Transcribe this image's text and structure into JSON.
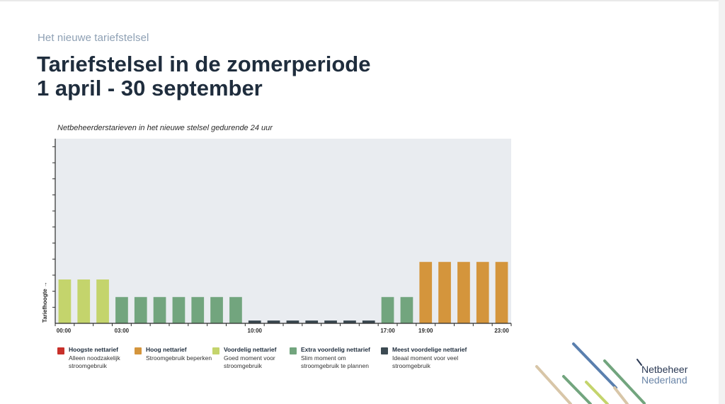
{
  "slide": {
    "kicker": "Het nieuwe tariefstelsel",
    "title_line1": "Tariefstelsel in de zomerperiode",
    "title_line2": "1 april - 30 september"
  },
  "chart_caption": "Netbeheerderstarieven in het nieuwe stelsel gedurende 24 uur",
  "chart_data": {
    "type": "bar",
    "title": "Netbeheerderstarieven in het nieuwe stelsel gedurende 24 uur",
    "ylabel": "Tariefhoogte →",
    "xlabel": "",
    "ylim": [
      0,
      10
    ],
    "x_tick_labels": [
      {
        "hour": 0,
        "label": "00:00"
      },
      {
        "hour": 3,
        "label": "03:00"
      },
      {
        "hour": 10,
        "label": "10:00"
      },
      {
        "hour": 17,
        "label": "17:00"
      },
      {
        "hour": 19,
        "label": "19:00"
      },
      {
        "hour": 23,
        "label": "23:00"
      }
    ],
    "hours": [
      0,
      1,
      2,
      3,
      4,
      5,
      6,
      7,
      8,
      9,
      10,
      11,
      12,
      13,
      14,
      15,
      16,
      17,
      18,
      19,
      20,
      21,
      22,
      23
    ],
    "values": [
      2.5,
      2.5,
      2.5,
      1.5,
      1.5,
      1.5,
      1.5,
      1.5,
      1.5,
      1.5,
      0.1,
      0.1,
      0.1,
      0.1,
      0.1,
      0.1,
      0.1,
      1.5,
      1.5,
      3.5,
      3.5,
      3.5,
      3.5,
      3.5
    ],
    "tariff_category": [
      "voordelig",
      "voordelig",
      "voordelig",
      "extra",
      "extra",
      "extra",
      "extra",
      "extra",
      "extra",
      "extra",
      "meest",
      "meest",
      "meest",
      "meest",
      "meest",
      "meest",
      "meest",
      "extra",
      "extra",
      "hoog",
      "hoog",
      "hoog",
      "hoog",
      "hoog"
    ],
    "grid": false,
    "legend_position": "bottom"
  },
  "colors": {
    "hoogste": "#c8302a",
    "hoog": "#d4953c",
    "voordelig": "#c4d46c",
    "extra": "#72a57e",
    "meest": "#3c4a52",
    "plot_bg": "#e9ecf0",
    "axis": "#2b2b2b"
  },
  "legend": [
    {
      "key": "hoogste",
      "title": "Hoogste nettarief",
      "desc": "Alleen noodzakelijk stroomgebruik"
    },
    {
      "key": "hoog",
      "title": "Hoog nettarief",
      "desc": "Stroomgebruik beperken"
    },
    {
      "key": "voordelig",
      "title": "Voordelig nettarief",
      "desc": "Goed moment voor stroomgebruik"
    },
    {
      "key": "extra",
      "title": "Extra voordelig nettarief",
      "desc": "Slim moment om stroomgebruik te plannen"
    },
    {
      "key": "meest",
      "title": "Meest voordelige nettarief",
      "desc": "Ideaal moment voor veel stroomgebruik"
    }
  ],
  "logo": {
    "line1": "Netbeheer",
    "line2": "Nederland"
  }
}
